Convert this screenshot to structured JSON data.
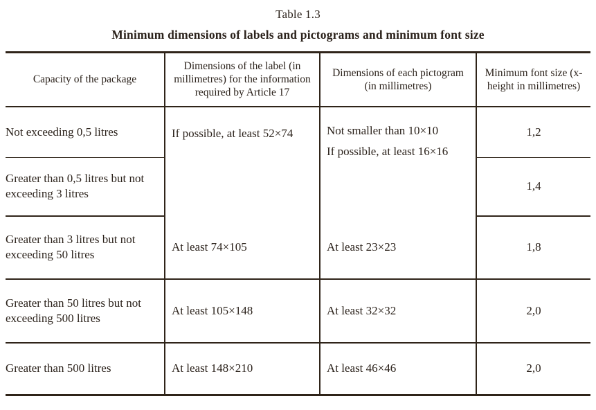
{
  "document": {
    "table_number": "Table 1.3",
    "table_title": "Minimum dimensions of labels and pictograms and minimum font size"
  },
  "table": {
    "columns": [
      {
        "label": "Capacity of the package"
      },
      {
        "label": "Dimensions of the label (in millimetres) for the information required by Article 17"
      },
      {
        "label": "Dimensions of each pictogram (in millimetres)"
      },
      {
        "label": "Minimum font size (x-height in millimetres)"
      }
    ],
    "rows": [
      {
        "capacity": "Not exceeding 0,5 litres",
        "label_dimensions": "If possible, at least 52×74",
        "pictogram_dimensions_line1": "Not smaller than 10×10",
        "pictogram_dimensions_line2": "If possible, at least 16×16",
        "min_font_size": "1,2"
      },
      {
        "capacity": "Greater than 0,5 litres but not exceeding 3 litres",
        "min_font_size": "1,4"
      },
      {
        "capacity": "Greater than 3 litres but not exceeding 50 litres",
        "label_dimensions": "At least 74×105",
        "pictogram_dimensions": "At least 23×23",
        "min_font_size": "1,8"
      },
      {
        "capacity": "Greater than 50 litres but not exceeding 500 litres",
        "label_dimensions": "At least 105×148",
        "pictogram_dimensions": "At least 32×32",
        "min_font_size": "2,0"
      },
      {
        "capacity": "Greater than 500 litres",
        "label_dimensions": "At least 148×210",
        "pictogram_dimensions": "At least 46×46",
        "min_font_size": "2,0"
      }
    ]
  },
  "colors": {
    "text": "#2b221b",
    "border": "#2f2419",
    "background": "#ffffff"
  }
}
